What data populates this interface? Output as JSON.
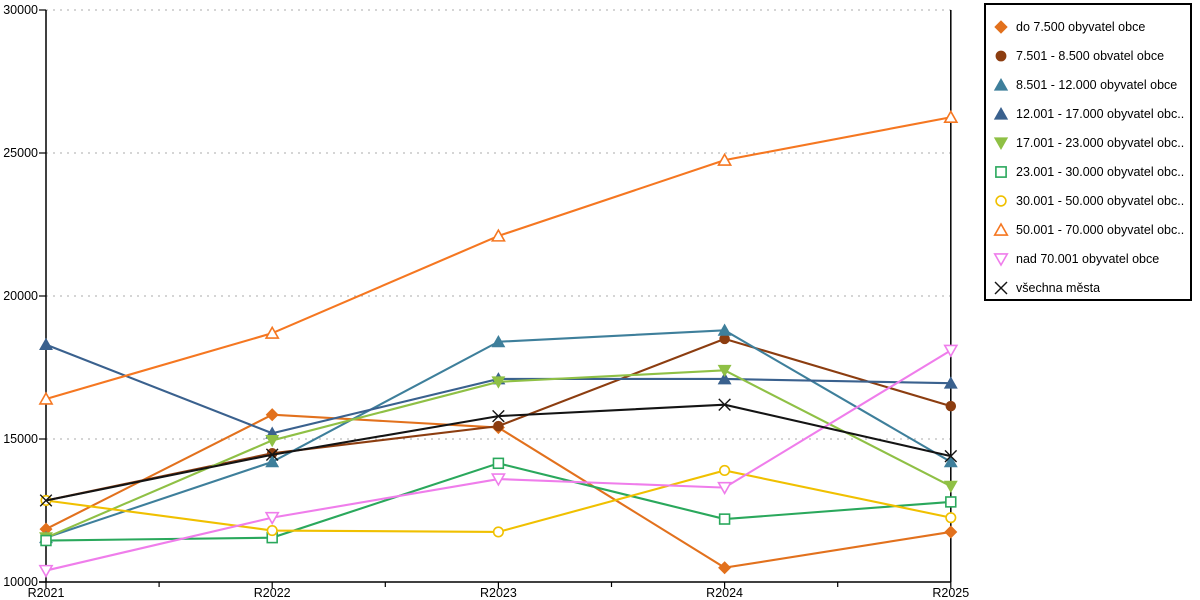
{
  "chart_data": {
    "type": "line",
    "title": "",
    "xlabel": "",
    "ylabel": "",
    "categories": [
      "R2021",
      "R2022",
      "R2023",
      "R2024",
      "R2025"
    ],
    "y_axis": {
      "min": 10000,
      "max": 30000,
      "step": 5000,
      "tick_labels": [
        "10000",
        "15000",
        "20000",
        "25000",
        "30000"
      ]
    },
    "grid": "horizontal dotted gridlines",
    "legend_position": "top-right",
    "colors": {
      "axis": "#000000",
      "gridline": "#ababab",
      "background": "#ffffff"
    },
    "series": [
      {
        "name": "do 7.500 obyvatel obce",
        "color": "#e2711d",
        "marker": "diamond",
        "filled": true,
        "values": [
          11850,
          15850,
          15400,
          10500,
          11750
        ]
      },
      {
        "name": "7.501 - 8.500 obvatel obce",
        "color": "#8c3d10",
        "marker": "circle",
        "filled": true,
        "values": [
          12850,
          14500,
          15450,
          18500,
          16150
        ]
      },
      {
        "name": "8.501 - 12.000 obyvatel obce",
        "color": "#3e7f9b",
        "marker": "triangle-up",
        "filled": true,
        "values": [
          11550,
          14200,
          18400,
          18800,
          14200
        ]
      },
      {
        "name": "12.001 - 17.000 obyvatel obc...",
        "color": "#3a618e",
        "marker": "triangle-up",
        "filled": true,
        "values": [
          18300,
          15200,
          17100,
          17100,
          16950
        ]
      },
      {
        "name": "17.001 - 23.000 obyvatel obc...",
        "color": "#8fc045",
        "marker": "triangle-down",
        "filled": true,
        "values": [
          11550,
          14950,
          17000,
          17400,
          13350
        ]
      },
      {
        "name": "23.001 - 30.000 obyvatel obc...",
        "color": "#2aa85c",
        "marker": "square",
        "filled": false,
        "values": [
          11450,
          11550,
          14150,
          12200,
          12800
        ]
      },
      {
        "name": "30.001 - 50.000 obyvatel obc...",
        "color": "#f0c000",
        "marker": "circle",
        "filled": false,
        "values": [
          12850,
          11800,
          11750,
          13900,
          12250
        ]
      },
      {
        "name": "50.001 - 70.000 obyvatel obc...",
        "color": "#f57721",
        "marker": "triangle-up",
        "filled": false,
        "values": [
          16400,
          18700,
          22100,
          24750,
          26250
        ]
      },
      {
        "name": "nad 70.001 obyvatel obce",
        "color": "#ef7deb",
        "marker": "triangle-down",
        "filled": false,
        "values": [
          10400,
          12250,
          13600,
          13300,
          18100
        ]
      },
      {
        "name": "všechna města",
        "color": "#141414",
        "marker": "x",
        "filled": false,
        "values": [
          12850,
          14450,
          15800,
          16200,
          14400
        ]
      }
    ]
  }
}
